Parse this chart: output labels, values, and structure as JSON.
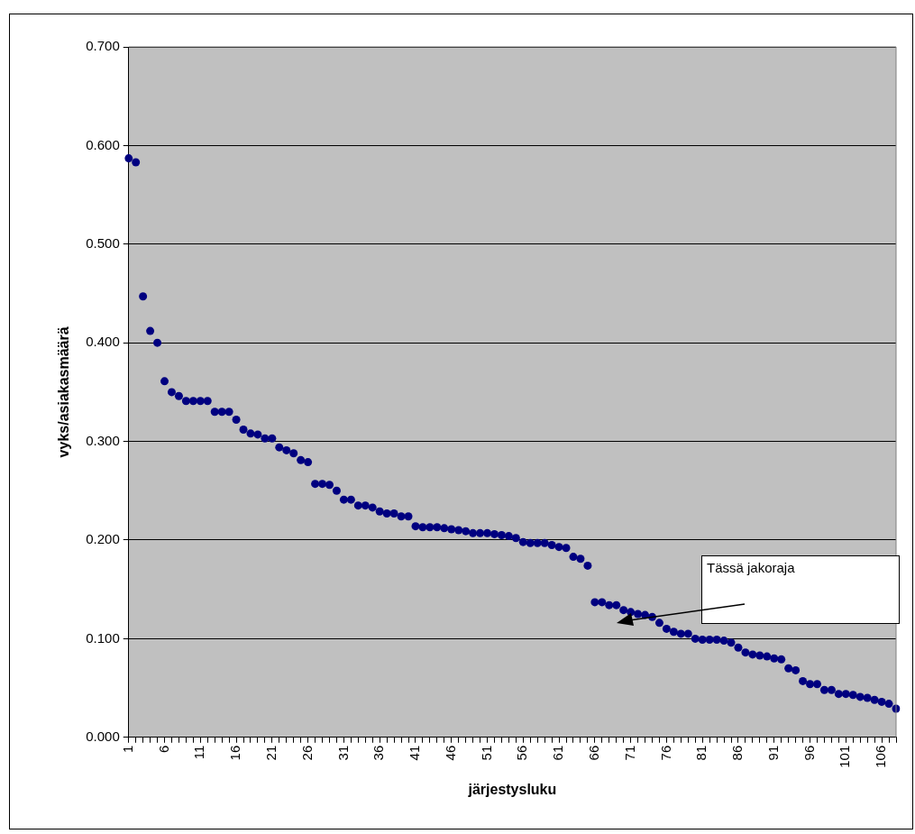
{
  "chart_data": {
    "type": "scatter",
    "xlabel": "järjestysluku",
    "ylabel": "vyks/asiakasmäärä",
    "categories": [
      "1",
      null,
      null,
      null,
      null,
      "6",
      null,
      null,
      null,
      null,
      "11",
      null,
      null,
      null,
      null,
      "16",
      null,
      null,
      null,
      null,
      "21",
      null,
      null,
      null,
      null,
      "26",
      null,
      null,
      null,
      null,
      "31",
      null,
      null,
      null,
      null,
      "36",
      null,
      null,
      null,
      null,
      "41",
      null,
      null,
      null,
      null,
      "46",
      null,
      null,
      null,
      null,
      "51",
      null,
      null,
      null,
      null,
      "56",
      null,
      null,
      null,
      null,
      "61",
      null,
      null,
      null,
      null,
      "66",
      null,
      null,
      null,
      null,
      "71",
      null,
      null,
      null,
      null,
      "76",
      null,
      null,
      null,
      null,
      "81",
      null,
      null,
      null,
      null,
      "86",
      null,
      null,
      null,
      null,
      "91",
      null,
      null,
      null,
      null,
      "96",
      null,
      null,
      null,
      null,
      "101",
      null,
      null,
      null,
      null,
      "106",
      null,
      null
    ],
    "series": [
      {
        "color": "#000080",
        "values": [
          0.587,
          0.583,
          0.447,
          0.412,
          0.4,
          0.361,
          0.35,
          0.346,
          0.341,
          0.341,
          0.341,
          0.341,
          0.33,
          0.33,
          0.33,
          0.322,
          0.312,
          0.308,
          0.307,
          0.303,
          0.303,
          0.294,
          0.291,
          0.288,
          0.281,
          0.279,
          0.257,
          0.257,
          0.256,
          0.25,
          0.241,
          0.241,
          0.235,
          0.235,
          0.233,
          0.229,
          0.227,
          0.227,
          0.224,
          0.224,
          0.214,
          0.213,
          0.213,
          0.213,
          0.212,
          0.211,
          0.21,
          0.209,
          0.207,
          0.207,
          0.207,
          0.206,
          0.205,
          0.204,
          0.202,
          0.198,
          0.197,
          0.197,
          0.197,
          0.195,
          0.193,
          0.192,
          0.183,
          0.181,
          0.174,
          0.137,
          0.137,
          0.134,
          0.134,
          0.129,
          0.127,
          0.125,
          0.124,
          0.122,
          0.116,
          0.11,
          0.107,
          0.105,
          0.105,
          0.1,
          0.099,
          0.099,
          0.099,
          0.098,
          0.096,
          0.091,
          0.086,
          0.084,
          0.083,
          0.082,
          0.08,
          0.079,
          0.07,
          0.068,
          0.057,
          0.054,
          0.054,
          0.048,
          0.048,
          0.044,
          0.044,
          0.043,
          0.041,
          0.04,
          0.038,
          0.036,
          0.034,
          0.029
        ]
      }
    ],
    "ylim": [
      0,
      0.7
    ],
    "yticks": [
      {
        "value": 0,
        "label": "0.000"
      },
      {
        "value": 0.1,
        "label": "0.100"
      },
      {
        "value": 0.2,
        "label": "0.200"
      },
      {
        "value": 0.3,
        "label": "0.300"
      },
      {
        "value": 0.4,
        "label": "0.400"
      },
      {
        "value": 0.5,
        "label": "0.500"
      },
      {
        "value": 0.6,
        "label": "0.600"
      },
      {
        "value": 0.7,
        "label": "0.700"
      }
    ],
    "grid": "y",
    "legend": false,
    "marker": "circle",
    "annotations": [
      "Tässä jakoraja"
    ]
  }
}
